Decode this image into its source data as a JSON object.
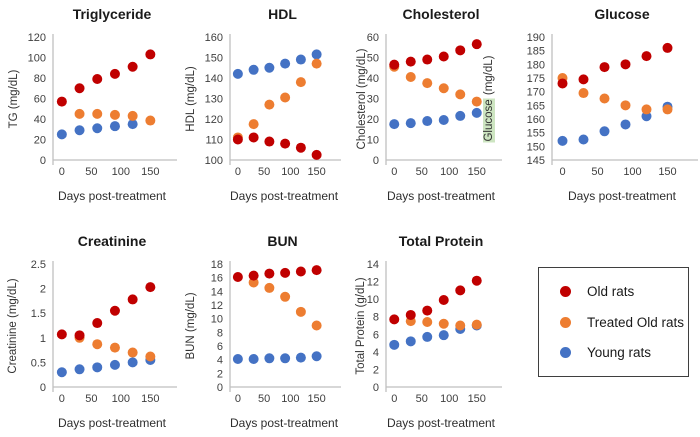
{
  "figure": {
    "background": "#ffffff"
  },
  "colors": {
    "old": "#c00000",
    "treated": "#ed7d31",
    "young": "#4472c4",
    "axis": "#bfbfbf",
    "tick_text": "#404040",
    "highlight": "#cde5c1",
    "legend_border": "#3f3f3f"
  },
  "legend": {
    "items": [
      {
        "label": "Old rats",
        "color": "old"
      },
      {
        "label": "Treated Old rats",
        "color": "treated"
      },
      {
        "label": "Young rats",
        "color": "young"
      }
    ]
  },
  "chart_data": [
    {
      "type": "scatter",
      "title": "Triglyceride",
      "ylabel": "TG (mg/dL)",
      "xlabel": "Days post-treatment",
      "ylim": [
        0,
        120
      ],
      "ystep": 20,
      "xlim": [
        -15,
        185
      ],
      "xticks": [
        0,
        50,
        100,
        150
      ],
      "x": [
        0,
        30,
        60,
        90,
        120,
        150
      ],
      "series": [
        {
          "name": "Old rats",
          "color": "old",
          "values": [
            57,
            70,
            79,
            84,
            91,
            103
          ]
        },
        {
          "name": "Treated Old rats",
          "color": "treated",
          "values": [
            null,
            45,
            45,
            44,
            43,
            38.5
          ]
        },
        {
          "name": "Young rats",
          "color": "young",
          "values": [
            25,
            29,
            31,
            33,
            35,
            null
          ]
        }
      ]
    },
    {
      "type": "scatter",
      "title": "HDL",
      "ylabel": "HDL (mg/dL)",
      "xlabel": "Days post-treatment",
      "ylim": [
        100,
        160
      ],
      "ystep": 10,
      "xlim": [
        -15,
        185
      ],
      "xticks": [
        0,
        50,
        100,
        150
      ],
      "x": [
        0,
        30,
        60,
        90,
        120,
        150
      ],
      "series": [
        {
          "name": "Old rats",
          "color": "old",
          "values": [
            110,
            111,
            109,
            108,
            106,
            102.5
          ]
        },
        {
          "name": "Treated Old rats",
          "color": "treated",
          "values": [
            111,
            117.5,
            127,
            130.5,
            138,
            147
          ]
        },
        {
          "name": "Young rats",
          "color": "young",
          "values": [
            142,
            144,
            145,
            147,
            149,
            151.5
          ]
        }
      ]
    },
    {
      "type": "scatter",
      "title": "Cholesterol",
      "ylabel": "Cholesterol (mg/dL)",
      "xlabel": "Days post-treatment",
      "ylim": [
        0,
        60
      ],
      "ystep": 10,
      "xlim": [
        -15,
        185
      ],
      "xticks": [
        0,
        50,
        100,
        150
      ],
      "x": [
        0,
        30,
        60,
        90,
        120,
        150
      ],
      "series": [
        {
          "name": "Old rats",
          "color": "old",
          "values": [
            46.5,
            48,
            49,
            50.5,
            53.5,
            56.5
          ]
        },
        {
          "name": "Treated Old rats",
          "color": "treated",
          "values": [
            45.5,
            40.5,
            37.5,
            35,
            32,
            28.5
          ]
        },
        {
          "name": "Young rats",
          "color": "young",
          "values": [
            17.5,
            18,
            19,
            19.5,
            21.5,
            23
          ]
        }
      ]
    },
    {
      "type": "scatter",
      "title": "Glucose",
      "ylabel": "Glucose (mg/dL)",
      "ylabel_highlight": "Glucose",
      "ylabel_rest": " (mg/dL)",
      "xlabel": "Days post-treatment",
      "ylim": [
        145,
        190
      ],
      "ystep": 5,
      "xlim": [
        -15,
        185
      ],
      "xticks": [
        0,
        50,
        100,
        150
      ],
      "x": [
        0,
        30,
        60,
        90,
        120,
        150
      ],
      "series": [
        {
          "name": "Old rats",
          "color": "old",
          "values": [
            173,
            174.5,
            179,
            180,
            183,
            186
          ]
        },
        {
          "name": "Treated Old rats",
          "color": "treated",
          "values": [
            175,
            169.5,
            167.5,
            165,
            163.5,
            163.5
          ]
        },
        {
          "name": "Young rats",
          "color": "young",
          "values": [
            152,
            152.5,
            155.5,
            158,
            161,
            164.5
          ]
        }
      ]
    },
    {
      "type": "scatter",
      "title": "Creatinine",
      "ylabel": "Creatinine (mg/dL)",
      "xlabel": "Days post-treatment",
      "ylim": [
        0,
        2.5
      ],
      "ystep": 0.5,
      "xlim": [
        -15,
        185
      ],
      "xticks": [
        0,
        50,
        100,
        150
      ],
      "x": [
        0,
        30,
        60,
        90,
        120,
        150
      ],
      "series": [
        {
          "name": "Old rats",
          "color": "old",
          "values": [
            1.07,
            1.05,
            1.3,
            1.55,
            1.78,
            2.03
          ]
        },
        {
          "name": "Treated Old rats",
          "color": "treated",
          "values": [
            null,
            1.0,
            0.87,
            0.8,
            0.7,
            0.62
          ]
        },
        {
          "name": "Young rats",
          "color": "young",
          "values": [
            0.3,
            0.36,
            0.4,
            0.45,
            0.5,
            0.55
          ]
        }
      ]
    },
    {
      "type": "scatter",
      "title": "BUN",
      "ylabel": "BUN (mg/dL)",
      "xlabel": "Days post-treatment",
      "ylim": [
        0,
        18
      ],
      "ystep": 2,
      "xlim": [
        -15,
        185
      ],
      "xticks": [
        0,
        50,
        100,
        150
      ],
      "x": [
        0,
        30,
        60,
        90,
        120,
        150
      ],
      "series": [
        {
          "name": "Old rats",
          "color": "old",
          "values": [
            16.1,
            16.3,
            16.6,
            16.7,
            16.9,
            17.1
          ]
        },
        {
          "name": "Treated Old rats",
          "color": "treated",
          "values": [
            null,
            15.3,
            14.5,
            13.2,
            11,
            9
          ]
        },
        {
          "name": "Young rats",
          "color": "young",
          "values": [
            4.1,
            4.1,
            4.2,
            4.2,
            4.3,
            4.5
          ]
        }
      ]
    },
    {
      "type": "scatter",
      "title": "Total Protein",
      "ylabel": "Total Protein (g/dL)",
      "xlabel": "Days post-treatment",
      "ylim": [
        0,
        14
      ],
      "ystep": 2,
      "xlim": [
        -15,
        185
      ],
      "xticks": [
        0,
        50,
        100,
        150
      ],
      "x": [
        0,
        30,
        60,
        90,
        120,
        150
      ],
      "series": [
        {
          "name": "Old rats",
          "color": "old",
          "values": [
            7.7,
            8.2,
            8.7,
            9.9,
            11,
            12.1
          ]
        },
        {
          "name": "Treated Old rats",
          "color": "treated",
          "values": [
            null,
            7.5,
            7.4,
            7.2,
            7.0,
            7.1
          ]
        },
        {
          "name": "Young rats",
          "color": "young",
          "values": [
            4.8,
            5.2,
            5.7,
            5.9,
            6.6,
            7.0
          ]
        }
      ]
    }
  ]
}
